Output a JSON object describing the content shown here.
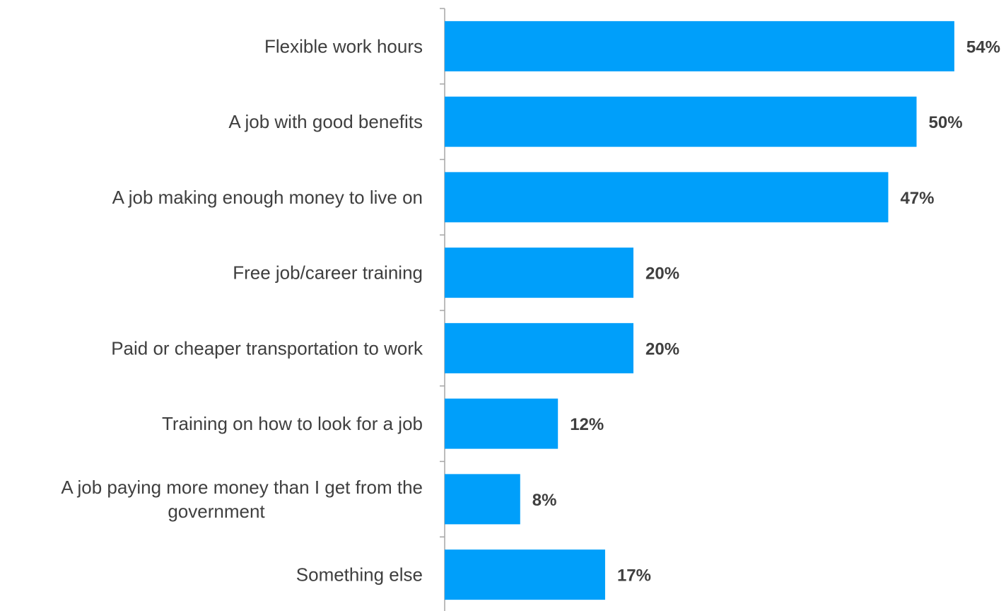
{
  "chart_data": {
    "type": "bar",
    "orientation": "horizontal",
    "categories": [
      "Flexible work hours",
      "A job with good benefits",
      "A job making enough money to live on",
      "Free job/career training",
      "Paid or cheaper transportation to work",
      "Training on how to look for a job",
      "A job paying more money than I get from the government",
      "Something else"
    ],
    "category_lines": [
      [
        "Flexible work hours"
      ],
      [
        "A job with good benefits"
      ],
      [
        "A job making enough money to live on"
      ],
      [
        "Free job/career training"
      ],
      [
        "Paid or cheaper transportation to work"
      ],
      [
        "Training on how to look for a job"
      ],
      [
        "A job paying more money than I get from the",
        "government"
      ],
      [
        "Something else"
      ]
    ],
    "values": [
      54,
      50,
      47,
      20,
      20,
      12,
      8,
      17
    ],
    "value_labels": [
      "54%",
      "50%",
      "47%",
      "20%",
      "20%",
      "12%",
      "8%",
      "17%"
    ],
    "title": "",
    "xlabel": "",
    "ylabel": "",
    "xlim": [
      0,
      54
    ],
    "grid": false,
    "legend": "none",
    "bar_color": "#009ffa",
    "axis_color": "#a6a6a6",
    "text_color": "#3f3f3f"
  }
}
